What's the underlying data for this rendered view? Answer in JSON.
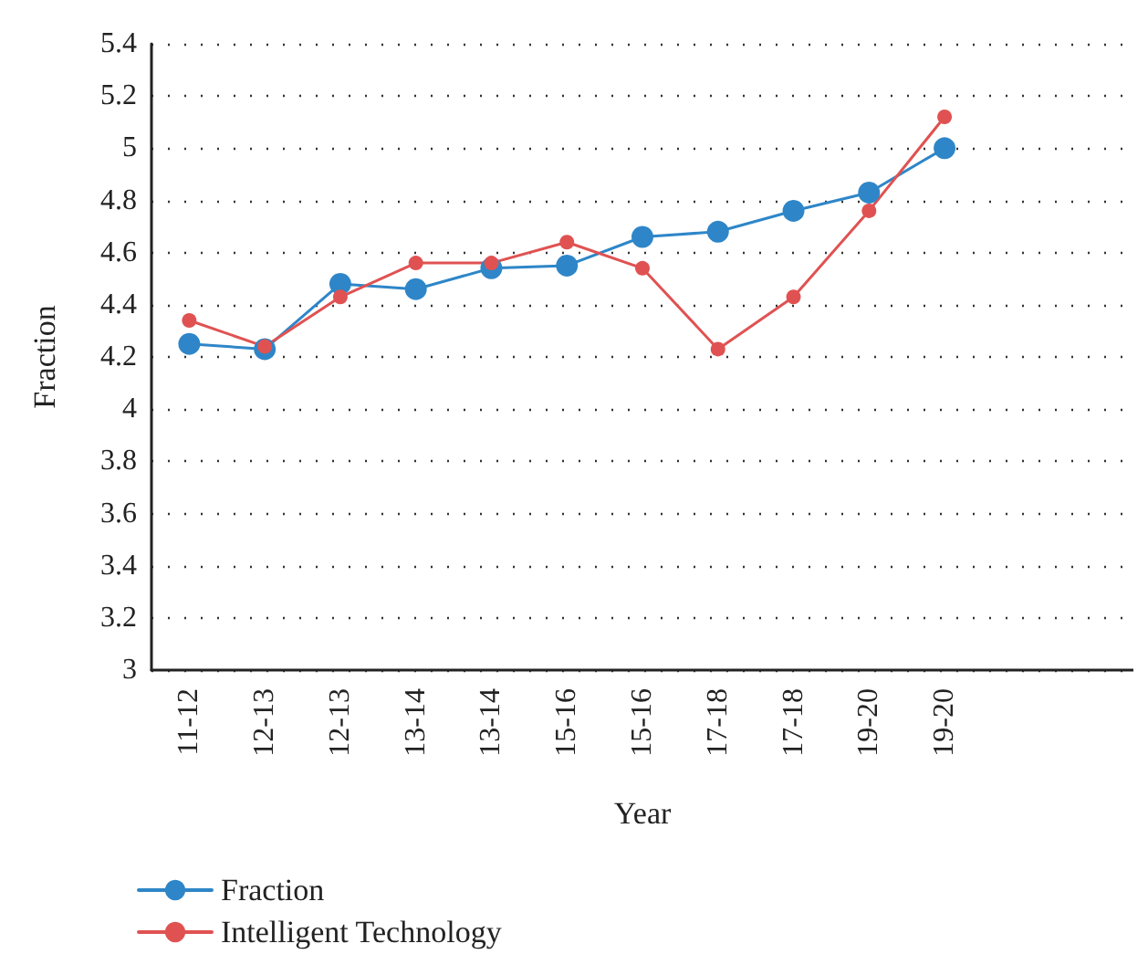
{
  "chart_data": {
    "type": "line",
    "xlabel": "Year",
    "ylabel": "Fraction",
    "categories": [
      "11-12",
      "12-13",
      "12-13",
      "13-14",
      "13-14",
      "15-16",
      "15-16",
      "17-18",
      "17-18",
      "19-20",
      "19-20",
      null,
      null
    ],
    "series": [
      {
        "name": "Fraction",
        "color": "#2e86c8",
        "values": [
          4.25,
          4.23,
          4.48,
          4.46,
          4.54,
          4.55,
          4.66,
          4.68,
          4.76,
          4.83,
          5.0,
          null,
          null
        ]
      },
      {
        "name": "Intelligent Technology",
        "color": "#e05252",
        "values": [
          4.34,
          4.24,
          4.43,
          4.56,
          4.56,
          4.64,
          4.54,
          4.23,
          4.43,
          4.76,
          5.12,
          null,
          null
        ]
      }
    ],
    "ylim": [
      3,
      5.4
    ],
    "yticks": [
      3,
      3.2,
      3.4,
      3.6,
      3.8,
      4,
      4.2,
      4.4,
      4.6,
      4.8,
      5,
      5.2,
      5.4
    ],
    "grid": "y",
    "legend": "bottom left",
    "marker": "circle",
    "line_style": "solid"
  }
}
